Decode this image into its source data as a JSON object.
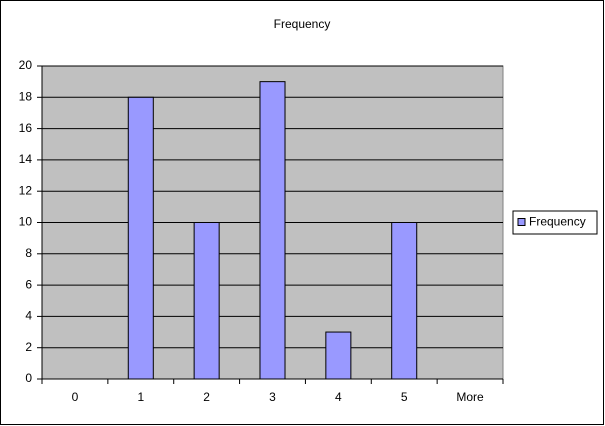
{
  "chart_data": {
    "type": "bar",
    "title": "Frequency",
    "categories": [
      "0",
      "1",
      "2",
      "3",
      "4",
      "5",
      "More"
    ],
    "series": [
      {
        "name": "Frequency",
        "color": "#9999ff",
        "values": [
          0,
          18,
          10,
          19,
          3,
          10,
          0
        ]
      }
    ],
    "ylim": [
      0,
      20
    ],
    "yticks": [
      0,
      2,
      4,
      6,
      8,
      10,
      12,
      14,
      16,
      18,
      20
    ],
    "grid": true,
    "legend": "right"
  }
}
